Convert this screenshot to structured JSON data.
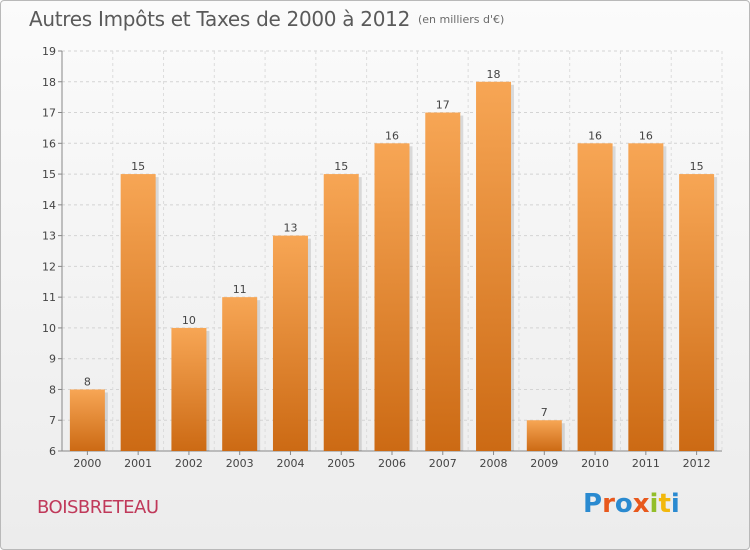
{
  "header": {
    "title": "Autres Impôts et Taxes de 2000 à 2012",
    "subtitle": "(en milliers d'€)"
  },
  "footer": {
    "location": "BOISBRETEAU",
    "logo_text": "Proxiti"
  },
  "colors": {
    "bar_light": "#f7a655",
    "bar_dark": "#cc6a14",
    "location_text": "#c0395a"
  },
  "chart_data": {
    "type": "bar",
    "title": "Autres Impôts et Taxes de 2000 à 2012",
    "subtitle": "(en milliers d'€)",
    "categories": [
      "2000",
      "2001",
      "2002",
      "2003",
      "2004",
      "2005",
      "2006",
      "2007",
      "2008",
      "2009",
      "2010",
      "2011",
      "2012"
    ],
    "values": [
      8,
      15,
      10,
      11,
      13,
      15,
      16,
      17,
      18,
      7,
      16,
      16,
      15
    ],
    "ylim": [
      6,
      19
    ],
    "yticks": [
      6,
      7,
      8,
      9,
      10,
      11,
      12,
      13,
      14,
      15,
      16,
      17,
      18,
      19
    ],
    "grid": true,
    "xlabel": "",
    "ylabel": ""
  }
}
